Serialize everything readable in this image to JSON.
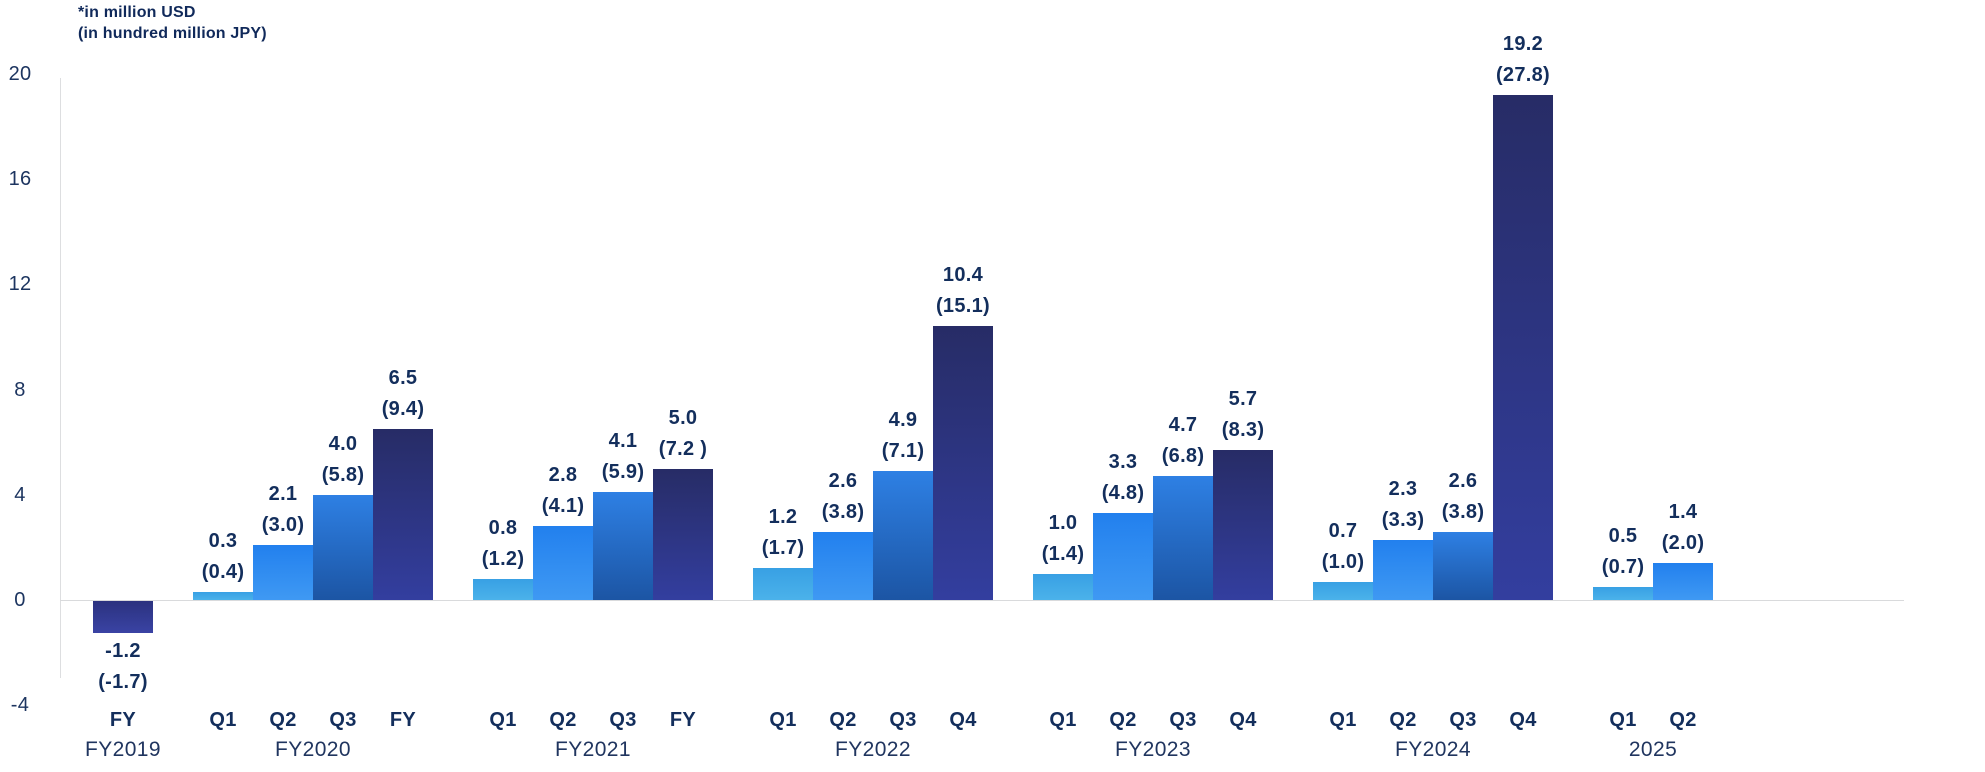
{
  "note": {
    "line1": "*in million USD",
    "line2": "(in hundred million JPY)"
  },
  "colors": {
    "text_dark_navy": "#132e5c",
    "tick_text": "#1d3560",
    "axis_line": "#d9dadc",
    "tones": {
      "t1": {
        "top": "#38a0e4",
        "bottom": "#4bb2ea"
      },
      "t2": {
        "top": "#2280ee",
        "bottom": "#3f99f3"
      },
      "t3": {
        "top": "#2e80e4",
        "bottom": "#1c55a4"
      },
      "t4": {
        "top": "#272c66",
        "bottom": "#333e9f"
      },
      "t4neg": {
        "top": "#2b327f",
        "bottom": "#3a43a4"
      }
    }
  },
  "chart_data": {
    "type": "bar",
    "title": "",
    "xlabel": "",
    "ylabel": "",
    "unit_primary": "million USD",
    "unit_secondary": "hundred million JPY",
    "ylim": [
      -4,
      20
    ],
    "yticks": [
      20,
      16,
      12,
      8,
      4,
      0,
      -4
    ],
    "grid": false,
    "legend": false,
    "groups": [
      {
        "label": "FY2019",
        "bars": [
          {
            "period": "FY",
            "tone": "t4neg",
            "usd": -1.2,
            "jpy": -1.7,
            "usd_label": "-1.2",
            "jpy_label": "(-1.7)"
          }
        ]
      },
      {
        "label": "FY2020",
        "bars": [
          {
            "period": "Q1",
            "tone": "t1",
            "usd": 0.3,
            "jpy": 0.4,
            "usd_label": "0.3",
            "jpy_label": "(0.4)"
          },
          {
            "period": "Q2",
            "tone": "t2",
            "usd": 2.1,
            "jpy": 3.0,
            "usd_label": "2.1",
            "jpy_label": "(3.0)"
          },
          {
            "period": "Q3",
            "tone": "t3",
            "usd": 4.0,
            "jpy": 5.8,
            "usd_label": "4.0",
            "jpy_label": "(5.8)"
          },
          {
            "period": "FY",
            "tone": "t4",
            "usd": 6.5,
            "jpy": 9.4,
            "usd_label": "6.5",
            "jpy_label": "(9.4)"
          }
        ]
      },
      {
        "label": "FY2021",
        "bars": [
          {
            "period": "Q1",
            "tone": "t1",
            "usd": 0.8,
            "jpy": 1.2,
            "usd_label": "0.8",
            "jpy_label": "(1.2)"
          },
          {
            "period": "Q2",
            "tone": "t2",
            "usd": 2.8,
            "jpy": 4.1,
            "usd_label": "2.8",
            "jpy_label": "(4.1)"
          },
          {
            "period": "Q3",
            "tone": "t3",
            "usd": 4.1,
            "jpy": 5.9,
            "usd_label": "4.1",
            "jpy_label": "(5.9)"
          },
          {
            "period": "FY",
            "tone": "t4",
            "usd": 5.0,
            "jpy": 7.2,
            "usd_label": "5.0",
            "jpy_label": "(7.2 )"
          }
        ]
      },
      {
        "label": "FY2022",
        "bars": [
          {
            "period": "Q1",
            "tone": "t1",
            "usd": 1.2,
            "jpy": 1.7,
            "usd_label": "1.2",
            "jpy_label": "(1.7)"
          },
          {
            "period": "Q2",
            "tone": "t2",
            "usd": 2.6,
            "jpy": 3.8,
            "usd_label": "2.6",
            "jpy_label": "(3.8)"
          },
          {
            "period": "Q3",
            "tone": "t3",
            "usd": 4.9,
            "jpy": 7.1,
            "usd_label": "4.9",
            "jpy_label": "(7.1)"
          },
          {
            "period": "Q4",
            "tone": "t4",
            "usd": 10.4,
            "jpy": 15.1,
            "usd_label": "10.4",
            "jpy_label": "(15.1)"
          }
        ]
      },
      {
        "label": "FY2023",
        "bars": [
          {
            "period": "Q1",
            "tone": "t1",
            "usd": 1.0,
            "jpy": 1.4,
            "usd_label": "1.0",
            "jpy_label": "(1.4)"
          },
          {
            "period": "Q2",
            "tone": "t2",
            "usd": 3.3,
            "jpy": 4.8,
            "usd_label": "3.3",
            "jpy_label": "(4.8)"
          },
          {
            "period": "Q3",
            "tone": "t3",
            "usd": 4.7,
            "jpy": 6.8,
            "usd_label": "4.7",
            "jpy_label": "(6.8)"
          },
          {
            "period": "Q4",
            "tone": "t4",
            "usd": 5.7,
            "jpy": 8.3,
            "usd_label": "5.7",
            "jpy_label": "(8.3)"
          }
        ]
      },
      {
        "label": "FY2024",
        "bars": [
          {
            "period": "Q1",
            "tone": "t1",
            "usd": 0.7,
            "jpy": 1.0,
            "usd_label": "0.7",
            "jpy_label": "(1.0)"
          },
          {
            "period": "Q2",
            "tone": "t2",
            "usd": 2.3,
            "jpy": 3.3,
            "usd_label": "2.3",
            "jpy_label": "(3.3)"
          },
          {
            "period": "Q3",
            "tone": "t3",
            "usd": 2.6,
            "jpy": 3.8,
            "usd_label": "2.6",
            "jpy_label": "(3.8)"
          },
          {
            "period": "Q4",
            "tone": "t4",
            "usd": 19.2,
            "jpy": 27.8,
            "usd_label": "19.2",
            "jpy_label": "(27.8)"
          }
        ]
      },
      {
        "label": "2025",
        "bars": [
          {
            "period": "Q1",
            "tone": "t1",
            "usd": 0.5,
            "jpy": 0.7,
            "usd_label": "0.5",
            "jpy_label": "(0.7)"
          },
          {
            "period": "Q2",
            "tone": "t2",
            "usd": 1.4,
            "jpy": 2.0,
            "usd_label": "1.4",
            "jpy_label": "(2.0)"
          }
        ]
      }
    ]
  }
}
